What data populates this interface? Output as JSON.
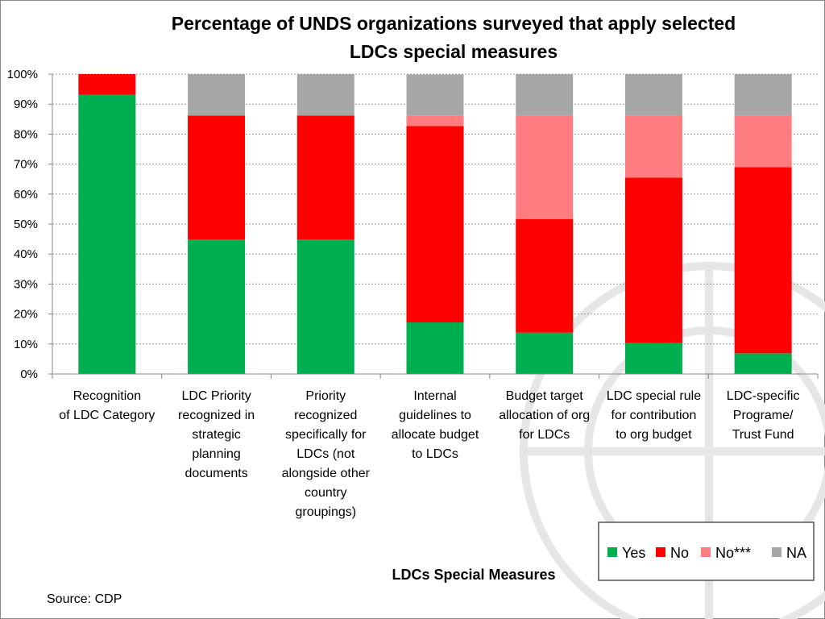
{
  "chart_data": {
    "type": "bar",
    "stacked": true,
    "title": "Percentage of UNDS organizations surveyed that apply selected LDCs special measures",
    "title_lines": [
      "Percentage of UNDS organizations surveyed that apply selected",
      "LDCs special measures"
    ],
    "xlabel": "LDCs Special Measures",
    "ylabel": "",
    "ylim": [
      0,
      100
    ],
    "yticks": [
      "0%",
      "10%",
      "20%",
      "30%",
      "40%",
      "50%",
      "60%",
      "70%",
      "80%",
      "90%",
      "100%"
    ],
    "grid": true,
    "legend_position": "bottom-right",
    "categories": [
      [
        "Recognition",
        "of LDC Category"
      ],
      [
        "LDC Priority",
        "recognized in",
        "strategic",
        "planning",
        "documents"
      ],
      [
        "Priority",
        "recognized",
        "specifically for",
        "LDCs (not",
        "alongside other",
        "country",
        "groupings)"
      ],
      [
        "Internal",
        "guidelines to",
        "allocate budget",
        "to LDCs"
      ],
      [
        "Budget target",
        "allocation of org",
        "for LDCs"
      ],
      [
        "LDC special rule",
        "for contribution",
        "to org budget"
      ],
      [
        "LDC-specific",
        "Programe/",
        "Trust Fund"
      ]
    ],
    "series": [
      {
        "name": "Yes",
        "color": "#00b050",
        "values": [
          93.1,
          44.8,
          44.8,
          17.2,
          13.8,
          10.3,
          6.9
        ]
      },
      {
        "name": "No",
        "color": "#ff0000",
        "values": [
          6.9,
          41.4,
          41.4,
          65.5,
          37.9,
          55.2,
          62.1
        ]
      },
      {
        "name": "No***",
        "color": "#ff7c80",
        "values": [
          0,
          0,
          0,
          3.4,
          34.5,
          20.7,
          17.2
        ]
      },
      {
        "name": "NA",
        "color": "#a6a6a6",
        "values": [
          0,
          13.8,
          13.8,
          13.8,
          13.8,
          13.8,
          13.8
        ]
      }
    ]
  },
  "source": "Source: CDP"
}
